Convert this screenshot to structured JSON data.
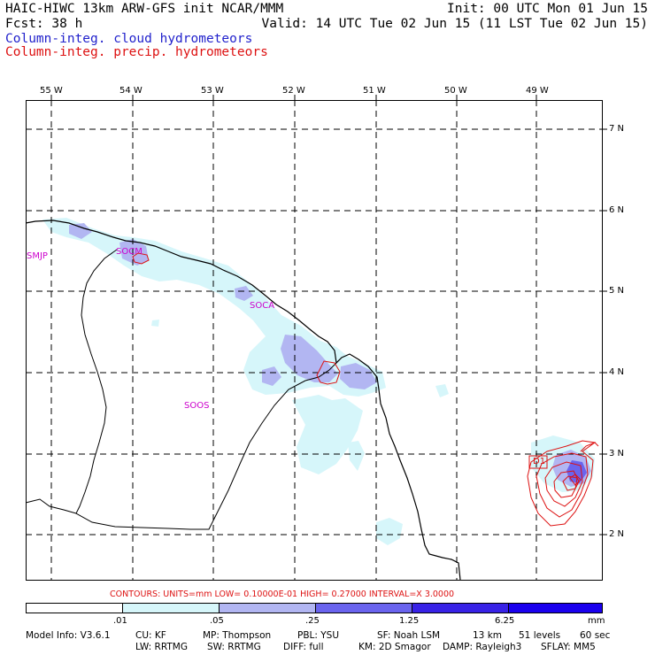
{
  "header": {
    "line1_left": "HAIC-HIWC 13km ARW-GFS init   NCAR/MMM",
    "line1_right": "Init: 00 UTC Mon 01 Jun 15",
    "line2_left": "Fcst:   38 h",
    "line2_right": "Valid: 14 UTC Tue 02 Jun 15 (11 LST Tue 02 Jun 15)",
    "field_cloud": "Column-integ. cloud hydrometeors",
    "field_precip": "Column-integ. precip. hydrometeors"
  },
  "colors": {
    "cloud": "#2222cc",
    "precip": "#dd1111",
    "station": "#cc00cc",
    "band1": "#d6f6fa",
    "band2": "#b2b6f2",
    "band3": "#6a64ee",
    "band4": "#3822e6",
    "band5": "#1a00ee"
  },
  "map": {
    "lon_labels": [
      "55 W",
      "54 W",
      "53 W",
      "52 W",
      "51 W",
      "50 W",
      "49 W"
    ],
    "lat_labels": [
      "7 N",
      "6 N",
      "5 N",
      "4 N",
      "3 N",
      "2 N"
    ],
    "stations": [
      "SMJP",
      "SOCM",
      "SOCA",
      "SOOS"
    ],
    "box_label": "D1"
  },
  "legend": {
    "contours": "CONTOURS:  UNITS=mm  LOW= 0.10000E-01  HIGH= 0.27000     INTERVAL=X  3.0000",
    "ticks": [
      ".01",
      ".05",
      ".25",
      "1.25",
      "6.25"
    ],
    "unit": "mm"
  },
  "footer": {
    "line1": [
      "Model Info: V3.6.1",
      "CU: KF",
      "MP: Thompson",
      "PBL: YSU",
      "SF: Noah LSM",
      "13 km",
      "51 levels",
      "60 sec"
    ],
    "line2": [
      "LW: RRTMG",
      "SW: RRTMG",
      "DIFF: full",
      "KM: 2D Smagor",
      "DAMP: Rayleigh3",
      "SFLAY: MM5"
    ]
  }
}
